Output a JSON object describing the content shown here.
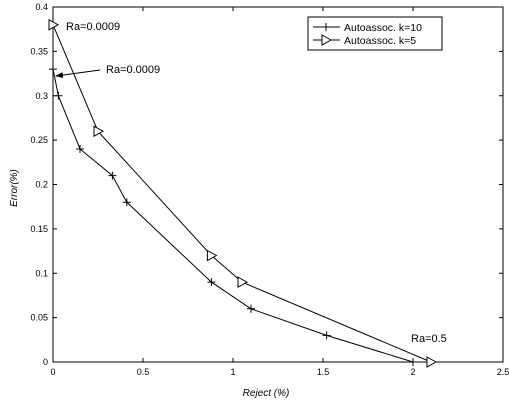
{
  "chart_data": {
    "type": "line",
    "xlabel": "Reject (%)",
    "ylabel": "Error(%)",
    "xlim": [
      0,
      2.5
    ],
    "ylim": [
      0,
      0.4
    ],
    "xticks": [
      "0",
      "0.5",
      "1",
      "1.5",
      "2",
      "2.5"
    ],
    "yticks": [
      "0",
      "0.05",
      "0.1",
      "0.15",
      "0.2",
      "0.25",
      "0.3",
      "0.35",
      "0.4"
    ],
    "grid": false,
    "legend_position": "top-right",
    "series": [
      {
        "name": "Autoassoc. k=10",
        "marker": "plus",
        "color": "#000000",
        "x": [
          0,
          0.03,
          0.15,
          0.33,
          0.41,
          0.88,
          1.1,
          1.52,
          2.0
        ],
        "y": [
          0.33,
          0.3,
          0.24,
          0.21,
          0.18,
          0.09,
          0.06,
          0.03,
          0.0
        ]
      },
      {
        "name": "Autoassoc. k=5",
        "marker": "triangle-right",
        "color": "#000000",
        "x": [
          0,
          0.25,
          0.88,
          1.05,
          2.1
        ],
        "y": [
          0.38,
          0.26,
          0.12,
          0.09,
          0.0
        ]
      }
    ],
    "annotations": [
      {
        "text": "Ra=0.0009"
      },
      {
        "text": "Ra=0.0009"
      },
      {
        "text": "Ra=0.5"
      }
    ]
  }
}
